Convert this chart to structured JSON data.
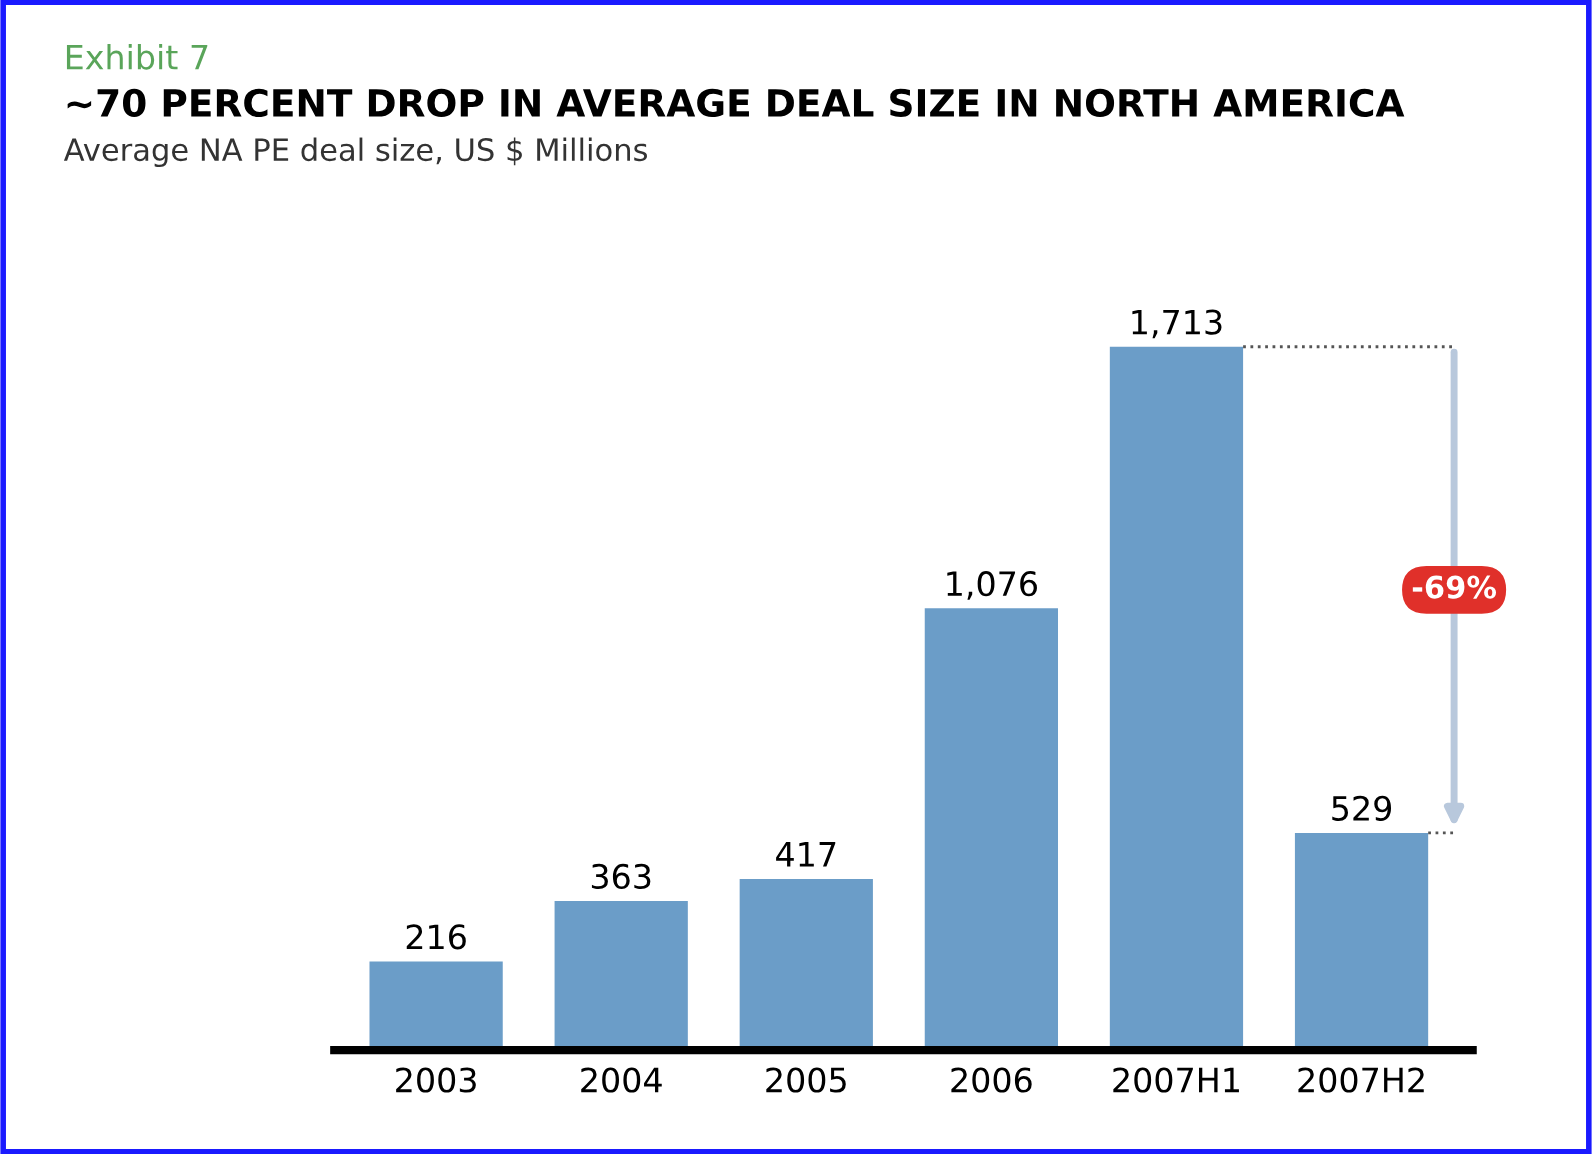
{
  "chart_data": {
    "type": "bar",
    "title": "~70 PERCENT DROP IN AVERAGE DEAL SIZE IN NORTH AMERICA",
    "subtitle": "Average NA PE deal size, US $ Millions",
    "categories": [
      "2003",
      "2004",
      "2005",
      "2006",
      "2007H1",
      "2007H2"
    ],
    "values": [
      216,
      363,
      417,
      1076,
      1713,
      529
    ],
    "color": "#6b9dc8",
    "data_labels": true,
    "value_labels": [
      "216",
      "363",
      "417",
      "1,076",
      "1,713",
      "529"
    ],
    "annotations": [
      "Exhibit 7",
      "-69%"
    ]
  }
}
